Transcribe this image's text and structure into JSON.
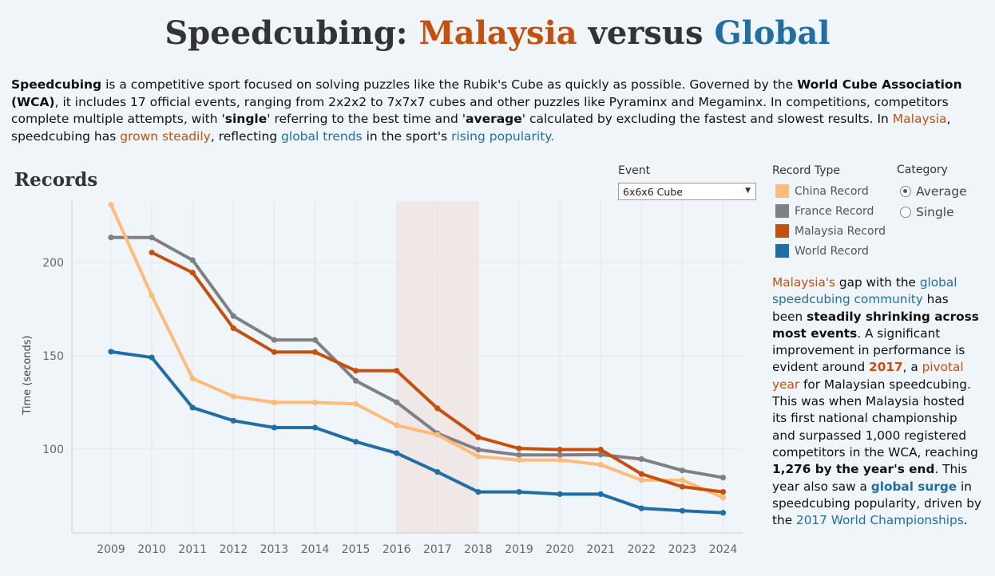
{
  "title": {
    "part1": "Speedcubing: ",
    "part2": "Malaysia",
    "part3": " versus ",
    "part4": "Global"
  },
  "intro": {
    "t1": "Speedcubing",
    "t2": " is a competitive sport focused on solving puzzles like the Rubik's Cube as quickly as possible. Governed by the ",
    "t3": "World Cube Association (WCA)",
    "t4": ", it includes 17 official events, ranging from 2x2x2 to 7x7x7 cubes and other puzzles like Pyraminx and Megaminx. In competitions, competitors complete multiple attempts, with '",
    "t5": "single",
    "t6": "' referring to the best time and '",
    "t7": "average",
    "t8": "' calculated by excluding the fastest and slowest results. In ",
    "t9": "Malaysia",
    "t10": ", speedcubing has ",
    "t11": "grown steadily",
    "t12": ", reflecting ",
    "t13": "global trends",
    "t14": " in the sport's ",
    "t15": "rising popularity."
  },
  "records_title": "Records",
  "filters": {
    "event_label": "Event",
    "event_value": "6x6x6 Cube",
    "record_type_label": "Record Type",
    "category_label": "Category",
    "categories": [
      {
        "label": "Average",
        "selected": true
      },
      {
        "label": "Single",
        "selected": false
      }
    ]
  },
  "legend": [
    {
      "label": "China Record",
      "color": "#ffbb78"
    },
    {
      "label": "France Record",
      "color": "#7f7f86"
    },
    {
      "label": "Malaysia Record",
      "color": "#c5500e"
    },
    {
      "label": "World Record",
      "color": "#1f6fa6"
    }
  ],
  "sidebar": {
    "s1": "Malaysia's",
    "s2": " gap with the ",
    "s3": "global speedcubing community",
    "s4": " has been ",
    "s5": "steadily shrinking across most events",
    "s6": ". A significant improvement in performance is evident around ",
    "s7": "2017",
    "s8": ", a ",
    "s9": "pivotal year",
    "s10": " for Malaysian speedcubing. This was when Malaysia hosted its first national championship and surpassed 1,000 registered competitors in the WCA, reaching ",
    "s11": "1,276 by the year's end",
    "s12": ". This year also saw a ",
    "s13": "global surge",
    "s14": " in speedcubing popularity, driven by the ",
    "s15": "2017 World Championships",
    "s16": "."
  },
  "chart_data": {
    "type": "line",
    "ylabel": "Time (seconds)",
    "xlabel": "",
    "x": [
      "2009",
      "2010",
      "2011",
      "2012",
      "2013",
      "2014",
      "2015",
      "2016",
      "2017",
      "2018",
      "2019",
      "2020",
      "2021",
      "2022",
      "2023",
      "2024"
    ],
    "yticks": [
      100,
      150,
      200
    ],
    "ylim": [
      55,
      233
    ],
    "highlight_range": [
      "2016",
      "2018"
    ],
    "highlight_color": "#f0e8e6",
    "grid": true,
    "series": [
      {
        "name": "France Record",
        "color": "#7f7f86",
        "values": [
          213.5,
          213.4,
          201.3,
          171.3,
          158.5,
          158.5,
          136.6,
          125.1,
          108.4,
          99.6,
          96.8,
          96.8,
          97.0,
          94.6,
          88.5,
          84.7
        ]
      },
      {
        "name": "China Record",
        "color": "#ffbb78",
        "values": [
          231.0,
          182.3,
          137.8,
          128.2,
          125.0,
          125.0,
          124.2,
          112.7,
          107.6,
          96.0,
          94.1,
          94.1,
          91.6,
          83.3,
          83.3,
          74.0
        ]
      },
      {
        "name": "Malaysia Record",
        "color": "#c5500e",
        "values": [
          null,
          205.4,
          194.6,
          164.8,
          152.0,
          152.0,
          142.0,
          142.0,
          121.8,
          106.3,
          100.3,
          99.7,
          99.7,
          86.6,
          79.8,
          77.0
        ]
      },
      {
        "name": "World Record",
        "color": "#1f6fa6",
        "values": [
          152.2,
          149.1,
          122.2,
          115.2,
          111.5,
          111.5,
          103.9,
          97.8,
          87.7,
          77.0,
          77.0,
          75.8,
          75.8,
          68.2,
          66.9,
          65.8
        ]
      }
    ]
  }
}
